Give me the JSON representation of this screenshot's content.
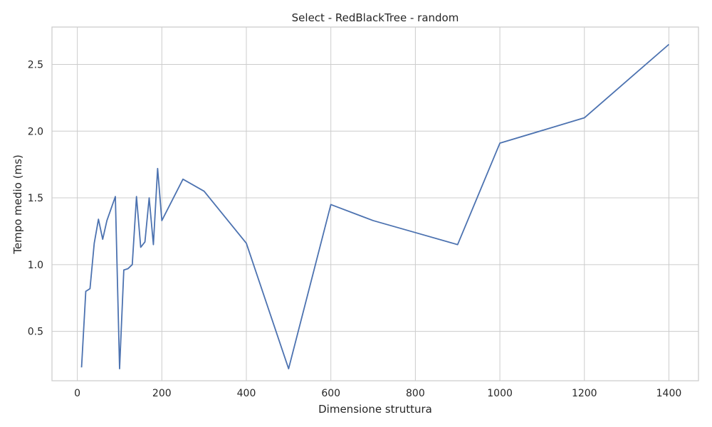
{
  "chart_data": {
    "type": "line",
    "title": "Select - RedBlackTree - random",
    "xlabel": "Dimensione struttura",
    "ylabel": "Tempo medio (ms)",
    "xlim": [
      -60,
      1470
    ],
    "ylim": [
      0.13,
      2.78
    ],
    "xticks": [
      0,
      200,
      400,
      600,
      800,
      1000,
      1200,
      1400
    ],
    "yticks": [
      0.5,
      1.0,
      1.5,
      2.0,
      2.5
    ],
    "xtick_labels": [
      "0",
      "200",
      "400",
      "600",
      "800",
      "1000",
      "1200",
      "1400"
    ],
    "ytick_labels": [
      "0.5",
      "1.0",
      "1.5",
      "2.0",
      "2.5"
    ],
    "grid": true,
    "line_color": "#4c72b0",
    "series": [
      {
        "x": [
          10,
          20,
          30,
          40,
          50,
          60,
          70,
          80,
          90,
          100,
          110,
          120,
          130,
          140,
          150,
          160,
          170,
          180,
          190,
          200,
          250,
          300,
          400,
          500,
          600,
          700,
          800,
          900,
          1000,
          1200,
          1400
        ],
        "values": [
          0.23,
          0.8,
          0.82,
          1.16,
          1.34,
          1.19,
          1.33,
          1.42,
          1.51,
          0.22,
          0.96,
          0.97,
          1.0,
          1.51,
          1.13,
          1.17,
          1.5,
          1.15,
          1.72,
          1.33,
          1.64,
          1.55,
          1.16,
          0.22,
          1.45,
          1.33,
          1.24,
          1.15,
          1.91,
          2.1,
          2.65
        ]
      }
    ]
  }
}
